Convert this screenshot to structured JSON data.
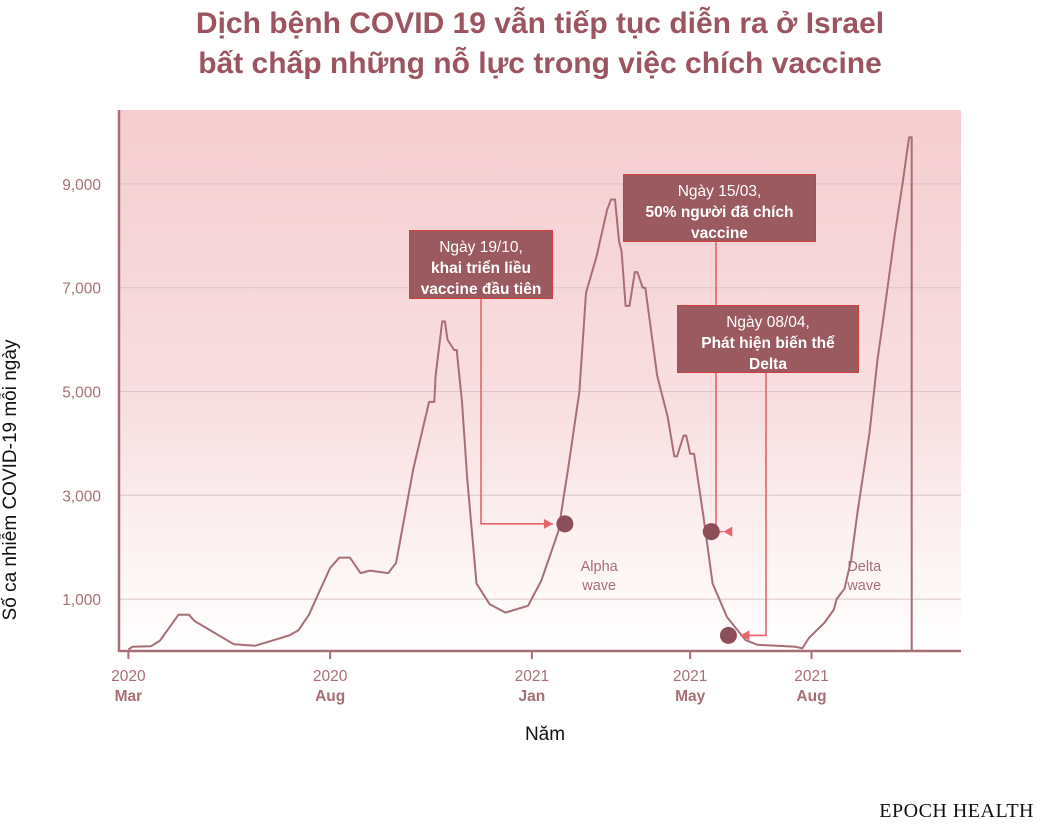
{
  "chart_data": {
    "type": "line",
    "title": [
      "Dịch bệnh COVID 19 vẫn tiếp tục diễn ra ở Israel",
      "bất chấp những nỗ lực trong việc chích vaccine"
    ],
    "xlabel": "Năm",
    "ylabel": "Số ca nhiễm COVID-19 mỗi ngày",
    "y_ticks": [
      {
        "value": 1000,
        "label": "1,000"
      },
      {
        "value": 3000,
        "label": "3,000"
      },
      {
        "value": 5000,
        "label": "5,000"
      },
      {
        "value": 7000,
        "label": "7,000"
      },
      {
        "value": 9000,
        "label": "9,000"
      }
    ],
    "x_ticks": [
      {
        "date": "2020-03-01",
        "year": "2020",
        "month": "Mar"
      },
      {
        "date": "2020-08-01",
        "year": "2020",
        "month": "Aug"
      },
      {
        "date": "2021-01-01",
        "year": "2021",
        "month": "Jan"
      },
      {
        "date": "2021-05-01",
        "year": "2021",
        "month": "May"
      },
      {
        "date": "2021-08-01",
        "year": "2021",
        "month": "Aug"
      }
    ],
    "x_range": [
      "2020-02-10",
      "2021-10-20"
    ],
    "ylim": [
      0,
      10300
    ],
    "grid": "horizontal",
    "series": [
      {
        "color": "#a86e76",
        "points": [
          [
            "2020-03-01",
            30
          ],
          [
            "2020-03-04",
            80
          ],
          [
            "2020-03-18",
            90
          ],
          [
            "2020-03-25",
            200
          ],
          [
            "2020-04-01",
            450
          ],
          [
            "2020-04-08",
            700
          ],
          [
            "2020-04-16",
            700
          ],
          [
            "2020-04-20",
            580
          ],
          [
            "2020-05-20",
            130
          ],
          [
            "2020-06-05",
            100
          ],
          [
            "2020-07-01",
            300
          ],
          [
            "2020-07-08",
            400
          ],
          [
            "2020-07-16",
            700
          ],
          [
            "2020-07-23",
            1100
          ],
          [
            "2020-08-01",
            1600
          ],
          [
            "2020-08-08",
            1800
          ],
          [
            "2020-08-16",
            1800
          ],
          [
            "2020-08-24",
            1500
          ],
          [
            "2020-08-31",
            1550
          ],
          [
            "2020-09-14",
            1500
          ],
          [
            "2020-09-20",
            1700
          ],
          [
            "2020-10-03",
            3500
          ],
          [
            "2020-10-15",
            4800
          ],
          [
            "2020-10-19",
            4800
          ],
          [
            "2020-10-20",
            5300
          ],
          [
            "2020-10-25",
            6350
          ],
          [
            "2020-10-27",
            6350
          ],
          [
            "2020-10-29",
            6000
          ],
          [
            "2020-11-03",
            5800
          ],
          [
            "2020-11-05",
            5800
          ],
          [
            "2020-11-09",
            4800
          ],
          [
            "2020-11-13",
            3300
          ],
          [
            "2020-11-20",
            1300
          ],
          [
            "2020-11-30",
            900
          ],
          [
            "2020-12-12",
            740
          ],
          [
            "2020-12-29",
            870
          ],
          [
            "2021-01-08",
            1350
          ],
          [
            "2021-01-21",
            2300
          ],
          [
            "2021-01-29",
            3600
          ],
          [
            "2021-02-06",
            5000
          ],
          [
            "2021-02-11",
            6900
          ],
          [
            "2021-02-19",
            7600
          ],
          [
            "2021-02-27",
            8500
          ],
          [
            "2021-03-02",
            8700
          ],
          [
            "2021-03-05",
            8700
          ],
          [
            "2021-03-08",
            7900
          ],
          [
            "2021-03-10",
            7700
          ],
          [
            "2021-03-13",
            6650
          ],
          [
            "2021-03-16",
            6650
          ],
          [
            "2021-03-20",
            7300
          ],
          [
            "2021-03-22",
            7300
          ],
          [
            "2021-03-26",
            7000
          ],
          [
            "2021-03-28",
            7000
          ],
          [
            "2021-04-06",
            5300
          ],
          [
            "2021-04-14",
            4500
          ],
          [
            "2021-04-19",
            3750
          ],
          [
            "2021-04-21",
            3750
          ],
          [
            "2021-04-26",
            4150
          ],
          [
            "2021-04-28",
            4150
          ],
          [
            "2021-05-01",
            3800
          ],
          [
            "2021-05-04",
            3800
          ],
          [
            "2021-05-11",
            2600
          ],
          [
            "2021-05-18",
            1300
          ],
          [
            "2021-05-29",
            650
          ],
          [
            "2021-06-12",
            210
          ],
          [
            "2021-06-21",
            120
          ],
          [
            "2021-07-20",
            80
          ],
          [
            "2021-07-25",
            50
          ],
          [
            "2021-07-30",
            250
          ],
          [
            "2021-08-05",
            400
          ],
          [
            "2021-08-11",
            550
          ],
          [
            "2021-08-18",
            800
          ],
          [
            "2021-08-20",
            1000
          ],
          [
            "2021-08-26",
            1200
          ],
          [
            "2021-08-31",
            1750
          ],
          [
            "2021-09-05",
            2700
          ],
          [
            "2021-09-14",
            4200
          ],
          [
            "2021-09-20",
            5600
          ],
          [
            "2021-09-25",
            6500
          ],
          [
            "2021-10-03",
            8000
          ],
          [
            "2021-10-09",
            9000
          ],
          [
            "2021-10-14",
            9900
          ],
          [
            "2021-10-16",
            9900
          ],
          [
            "2021-10-16",
            0
          ]
        ]
      }
    ],
    "annotations": [
      {
        "id": "vaccine",
        "lines": [
          "Ngày 19/10,",
          "khai triển liều",
          "vaccine đầu tiên"
        ],
        "marker": [
          "2021-01-26",
          2450
        ]
      },
      {
        "id": "half",
        "lines": [
          "Ngày 15/03,",
          "50% người đã chích",
          "vaccine"
        ],
        "marker": [
          "2021-05-17",
          2300
        ]
      },
      {
        "id": "delta",
        "lines": [
          "Ngày 08/04,",
          "Phát hiện biến thể",
          "Delta"
        ],
        "marker": [
          "2021-05-30",
          300
        ]
      }
    ],
    "wave_labels": [
      {
        "lines": [
          "Alpha",
          "wave"
        ],
        "date": "2021-02-21",
        "value": 1540
      },
      {
        "lines": [
          "Delta",
          "wave"
        ],
        "date": "2021-09-10",
        "value": 1540
      }
    ],
    "colors": {
      "title": "#9c5560",
      "line": "#a86e76",
      "axis": "#a86e76",
      "background_top": "#f5cdd0",
      "callout_fill": "#9a5a60",
      "callout_border": "#d23c3c",
      "marker": "#8c4e58",
      "connector": "#e8646a"
    }
  },
  "brand": "EPOCH HEALTH"
}
